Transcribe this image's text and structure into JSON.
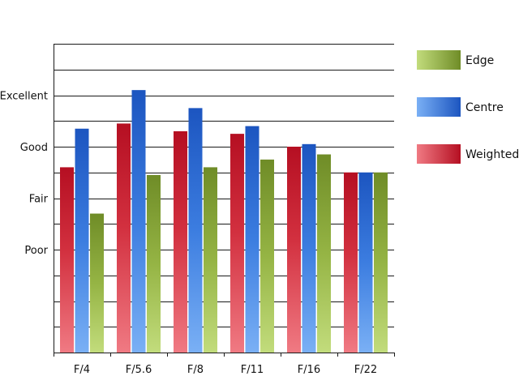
{
  "chart_data": {
    "type": "bar",
    "categories": [
      "F/4",
      "F/5.6",
      "F/8",
      "F/11",
      "F/16",
      "F/22"
    ],
    "series": [
      {
        "name": "Weighted",
        "values": [
          2.6,
          3.45,
          3.3,
          3.25,
          3.0,
          2.5
        ],
        "color": "#c8102e"
      },
      {
        "name": "Centre",
        "values": [
          3.35,
          4.1,
          3.75,
          3.4,
          3.05,
          2.5
        ],
        "color": "#1f5fc6"
      },
      {
        "name": "Edge",
        "values": [
          1.7,
          2.45,
          2.6,
          2.75,
          2.85,
          2.5
        ],
        "color": "#7a9a2e"
      }
    ],
    "yticks": [
      {
        "label": "Poor",
        "value": 1
      },
      {
        "label": "Fair",
        "value": 2
      },
      {
        "label": "Good",
        "value": 3
      },
      {
        "label": "Excellent",
        "value": 4
      }
    ],
    "ylim": [
      -1,
      5
    ],
    "grid_step": 0.5,
    "grid": true,
    "legend": {
      "position": "right",
      "order": [
        "Edge",
        "Centre",
        "Weighted"
      ]
    },
    "title": "",
    "xlabel": "",
    "ylabel": ""
  }
}
